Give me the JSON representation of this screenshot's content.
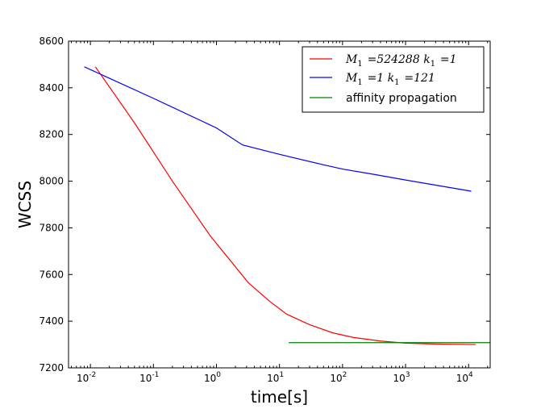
{
  "chart_data": {
    "type": "line",
    "xlabel": "time[s]",
    "ylabel": "WCSS",
    "xscale": "log",
    "xlim": [
      0.0045,
      22000
    ],
    "ylim": [
      7200,
      8600
    ],
    "yticks": [
      7200,
      7400,
      7600,
      7800,
      8000,
      8200,
      8400,
      8600
    ],
    "xticks": [
      {
        "value": 0.01,
        "base": "10",
        "exp": "-2"
      },
      {
        "value": 0.1,
        "base": "10",
        "exp": "-1"
      },
      {
        "value": 1,
        "base": "10",
        "exp": "0"
      },
      {
        "value": 10,
        "base": "10",
        "exp": "1"
      },
      {
        "value": 100,
        "base": "10",
        "exp": "2"
      },
      {
        "value": 1000,
        "base": "10",
        "exp": "3"
      },
      {
        "value": 10000,
        "base": "10",
        "exp": "4"
      }
    ],
    "grid": false,
    "legend_position": "top-right",
    "series": [
      {
        "name_parts": [
          {
            "text": "M",
            "sub": "1"
          },
          {
            "text": " =524288 "
          },
          {
            "text": "k",
            "sub": "1"
          },
          {
            "text": " =1"
          }
        ],
        "color": "#ff0000",
        "x": [
          0.012,
          0.05,
          0.2,
          0.8,
          3.2,
          7,
          13,
          30,
          70,
          150,
          400,
          1000,
          3000,
          13000
        ],
        "y": [
          8490,
          8250,
          8000,
          7765,
          7565,
          7485,
          7430,
          7385,
          7350,
          7330,
          7315,
          7306,
          7302,
          7300
        ]
      },
      {
        "name_parts": [
          {
            "text": "M",
            "sub": "1"
          },
          {
            "text": " =1 "
          },
          {
            "text": "k",
            "sub": "1"
          },
          {
            "text": " =121"
          }
        ],
        "color": "#0000ff",
        "x": [
          0.008,
          0.1,
          1,
          2.6,
          10,
          50,
          100,
          300,
          1000,
          3000,
          11000
        ],
        "y": [
          8490,
          8355,
          8228,
          8155,
          8115,
          8070,
          8052,
          8030,
          8005,
          7983,
          7957
        ]
      },
      {
        "name": "affinity propagation",
        "color": "#008000",
        "x": [
          14,
          22000
        ],
        "y": [
          7308,
          7308
        ]
      }
    ]
  }
}
